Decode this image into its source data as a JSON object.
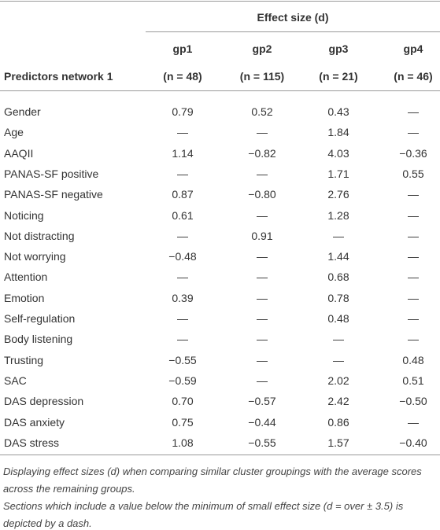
{
  "header": {
    "effect_size": "Effect size (d)",
    "row_label": "Predictors network 1",
    "columns": [
      "gp1",
      "gp2",
      "gp3",
      "gp4"
    ],
    "n": [
      "(n = 48)",
      "(n = 115)",
      "(n = 21)",
      "(n = 46)"
    ]
  },
  "table": {
    "rows": [
      [
        "Gender",
        "0.79",
        "0.52",
        "0.43",
        "—"
      ],
      [
        "Age",
        "—",
        "—",
        "1.84",
        "—"
      ],
      [
        "AAQII",
        "1.14",
        "−0.82",
        "4.03",
        "−0.36"
      ],
      [
        "PANAS-SF positive",
        "—",
        "—",
        "1.71",
        "0.55"
      ],
      [
        "PANAS-SF negative",
        "0.87",
        "−0.80",
        "2.76",
        "—"
      ],
      [
        "Noticing",
        "0.61",
        "—",
        "1.28",
        "—"
      ],
      [
        "Not distracting",
        "—",
        "0.91",
        "—",
        "—"
      ],
      [
        "Not worrying",
        "−0.48",
        "—",
        "1.44",
        "—"
      ],
      [
        "Attention",
        "—",
        "—",
        "0.68",
        "—"
      ],
      [
        "Emotion",
        "0.39",
        "—",
        "0.78",
        "—"
      ],
      [
        "Self-regulation",
        "—",
        "—",
        "0.48",
        "—"
      ],
      [
        "Body listening",
        "—",
        "—",
        "—",
        "—"
      ],
      [
        "Trusting",
        "−0.55",
        "—",
        "—",
        "0.48"
      ],
      [
        "SAC",
        "−0.59",
        "—",
        "2.02",
        "0.51"
      ],
      [
        "DAS depression",
        "0.70",
        "−0.57",
        "2.42",
        "−0.50"
      ],
      [
        "DAS anxiety",
        "0.75",
        "−0.44",
        "0.86",
        "—"
      ],
      [
        "DAS stress",
        "1.08",
        "−0.55",
        "1.57",
        "−0.40"
      ]
    ]
  },
  "notes": [
    "Displaying effect sizes (d) when comparing similar cluster groupings with the average scores across the remaining groups.",
    "Sections which include a value below the minimum of small effect size (d = over ± 3.5) is depicted by a dash."
  ]
}
